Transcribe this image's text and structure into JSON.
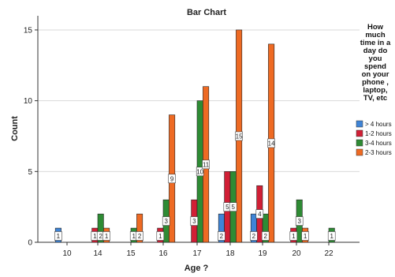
{
  "chart_data": {
    "type": "bar",
    "title": "Bar Chart",
    "xlabel": "Age ?",
    "ylabel": "Count",
    "categories": [
      "10",
      "14",
      "15",
      "16",
      "17",
      "18",
      "19",
      "20",
      "22"
    ],
    "yticks": [
      0,
      5,
      10,
      15
    ],
    "ylim": [
      0,
      16
    ],
    "grid": true,
    "legend": {
      "title_lines": [
        "How",
        "much",
        "time in a",
        "day do",
        "you",
        "spend",
        "on your",
        "phone ,",
        "laptop,",
        "TV, etc"
      ],
      "placement": "right"
    },
    "series": [
      {
        "name": "> 4 hours",
        "color": "#3f84d6",
        "values": [
          1,
          0,
          0,
          0,
          0,
          2,
          2,
          0,
          0
        ]
      },
      {
        "name": "1-2 hours",
        "color": "#d11f35",
        "values": [
          0,
          1,
          0,
          1,
          3,
          5,
          4,
          1,
          0
        ]
      },
      {
        "name": "3-4 hours",
        "color": "#2e8b34",
        "values": [
          0,
          2,
          1,
          3,
          10,
          5,
          2,
          3,
          1
        ]
      },
      {
        "name": "2-3 hours",
        "color": "#ee6a23",
        "values": [
          0,
          1,
          2,
          9,
          11,
          15,
          14,
          1,
          0
        ]
      }
    ]
  }
}
